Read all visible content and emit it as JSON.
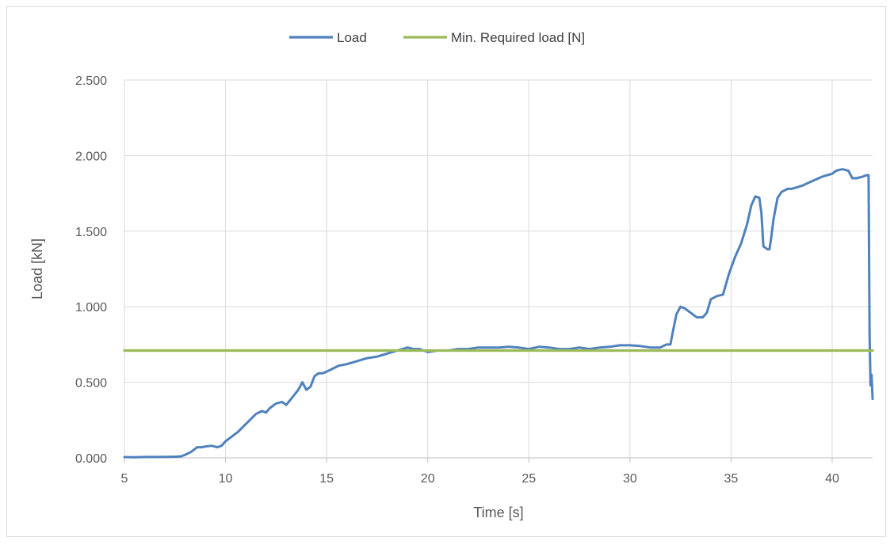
{
  "chart_data": {
    "type": "line",
    "title": "",
    "xlabel": "Time [s]",
    "ylabel": "Load [kN]",
    "xlim": [
      5,
      42
    ],
    "ylim": [
      0,
      2.5
    ],
    "x_ticks": [
      5,
      10,
      15,
      20,
      25,
      30,
      35,
      40
    ],
    "x_tick_labels": [
      "5",
      "10",
      "15",
      "20",
      "25",
      "30",
      "35",
      "40"
    ],
    "y_ticks": [
      0,
      0.5,
      1.0,
      1.5,
      2.0,
      2.5
    ],
    "y_tick_labels": [
      "0.000",
      "0.500",
      "1.000",
      "1.500",
      "2.000",
      "2.500"
    ],
    "grid": true,
    "legend_position": "top-center",
    "series": [
      {
        "name": "Load",
        "color": "#4f81bd",
        "x": [
          5.0,
          5.5,
          6.0,
          6.5,
          7.0,
          7.5,
          7.8,
          8.0,
          8.3,
          8.6,
          8.8,
          9.0,
          9.3,
          9.6,
          9.8,
          10.0,
          10.3,
          10.6,
          10.9,
          11.2,
          11.5,
          11.8,
          12.0,
          12.2,
          12.5,
          12.8,
          13.0,
          13.3,
          13.6,
          13.8,
          14.0,
          14.2,
          14.4,
          14.6,
          14.8,
          15.0,
          15.3,
          15.6,
          16.0,
          16.5,
          17.0,
          17.5,
          18.0,
          18.5,
          19.0,
          19.3,
          19.6,
          20.0,
          20.5,
          21.0,
          21.5,
          22.0,
          22.5,
          23.0,
          23.5,
          24.0,
          24.5,
          25.0,
          25.5,
          26.0,
          26.5,
          27.0,
          27.5,
          28.0,
          28.5,
          29.0,
          29.5,
          30.0,
          30.5,
          31.0,
          31.5,
          31.8,
          32.0,
          32.1,
          32.3,
          32.5,
          32.7,
          33.0,
          33.3,
          33.6,
          33.8,
          34.0,
          34.3,
          34.6,
          34.9,
          35.2,
          35.5,
          35.8,
          36.0,
          36.2,
          36.4,
          36.5,
          36.6,
          36.8,
          36.9,
          37.0,
          37.1,
          37.3,
          37.5,
          37.8,
          38.0,
          38.5,
          39.0,
          39.5,
          40.0,
          40.2,
          40.5,
          40.8,
          41.0,
          41.2,
          41.5,
          41.7,
          41.8,
          41.85,
          41.9,
          41.95,
          42.0
        ],
        "values": [
          0.005,
          0.004,
          0.006,
          0.006,
          0.007,
          0.008,
          0.01,
          0.02,
          0.04,
          0.07,
          0.07,
          0.075,
          0.08,
          0.07,
          0.08,
          0.11,
          0.14,
          0.17,
          0.21,
          0.25,
          0.29,
          0.31,
          0.3,
          0.33,
          0.36,
          0.37,
          0.35,
          0.4,
          0.45,
          0.5,
          0.45,
          0.47,
          0.54,
          0.56,
          0.56,
          0.57,
          0.59,
          0.61,
          0.62,
          0.64,
          0.66,
          0.67,
          0.69,
          0.71,
          0.73,
          0.72,
          0.72,
          0.7,
          0.71,
          0.71,
          0.72,
          0.72,
          0.73,
          0.73,
          0.73,
          0.735,
          0.73,
          0.72,
          0.735,
          0.73,
          0.72,
          0.72,
          0.73,
          0.72,
          0.73,
          0.735,
          0.745,
          0.745,
          0.74,
          0.73,
          0.73,
          0.75,
          0.75,
          0.82,
          0.95,
          1.0,
          0.99,
          0.96,
          0.93,
          0.93,
          0.96,
          1.05,
          1.07,
          1.08,
          1.22,
          1.33,
          1.42,
          1.55,
          1.67,
          1.73,
          1.72,
          1.62,
          1.4,
          1.38,
          1.38,
          1.47,
          1.58,
          1.72,
          1.76,
          1.78,
          1.78,
          1.8,
          1.83,
          1.86,
          1.88,
          1.9,
          1.91,
          1.9,
          1.85,
          1.85,
          1.86,
          1.87,
          1.87,
          0.81,
          0.48,
          0.55,
          0.39
        ]
      },
      {
        "name": "Min. Required load [N]",
        "color": "#9bbb59",
        "x": [
          5.0,
          42.0
        ],
        "values": [
          0.71,
          0.71
        ]
      }
    ]
  }
}
